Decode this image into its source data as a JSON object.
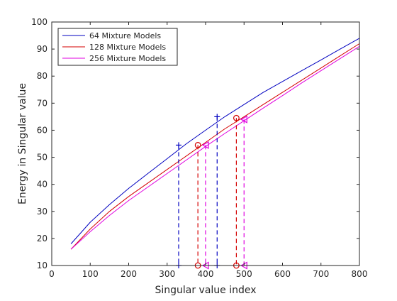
{
  "chart_data": {
    "type": "line",
    "title": "",
    "xlabel": "Singular value index",
    "ylabel": "Energy in Singular value",
    "xlim": [
      0,
      800
    ],
    "ylim": [
      10,
      100
    ],
    "xticks": [
      "0",
      "100",
      "200",
      "300",
      "400",
      "500",
      "600",
      "700",
      "800"
    ],
    "yticks": [
      "10",
      "20",
      "30",
      "40",
      "50",
      "60",
      "70",
      "80",
      "90",
      "100"
    ],
    "grid": false,
    "legend_position": "top-left",
    "series": [
      {
        "name": "64 Mixture Models",
        "color": "#0000c0",
        "x": [
          50,
          100,
          150,
          200,
          250,
          300,
          350,
          400,
          450,
          500,
          550,
          600,
          650,
          700,
          750,
          800
        ],
        "y": [
          18,
          26,
          32.5,
          38.5,
          44,
          49.5,
          55,
          60,
          65,
          69.5,
          74,
          78,
          82,
          86,
          90,
          94
        ]
      },
      {
        "name": "128 Mixture Models",
        "color": "#d40000",
        "x": [
          50,
          100,
          150,
          200,
          250,
          300,
          350,
          400,
          450,
          500,
          550,
          600,
          650,
          700,
          750,
          800
        ],
        "y": [
          16,
          23.5,
          30,
          35.5,
          40.5,
          45.5,
          50.5,
          55.5,
          60.5,
          65,
          69.5,
          74,
          78.5,
          83,
          87.5,
          92
        ]
      },
      {
        "name": "256 Mixture Models",
        "color": "#e000e0",
        "x": [
          50,
          100,
          150,
          200,
          250,
          300,
          350,
          400,
          450,
          500,
          550,
          600,
          650,
          700,
          750,
          800
        ],
        "y": [
          16,
          22.5,
          28.5,
          34,
          39,
          44,
          49,
          54,
          58.8,
          63.5,
          68.2,
          72.8,
          77.5,
          82,
          86.5,
          91
        ]
      }
    ],
    "markers": [
      {
        "series": "64 Mixture Models",
        "symbol": "+",
        "color": "#0000c0",
        "x": 330,
        "y": 54.5
      },
      {
        "series": "64 Mixture Models",
        "symbol": "+",
        "color": "#0000c0",
        "x": 430,
        "y": 65
      },
      {
        "series": "128 Mixture Models",
        "symbol": "o",
        "color": "#d40000",
        "x": 380,
        "y": 54.5
      },
      {
        "series": "128 Mixture Models",
        "symbol": "o",
        "color": "#d40000",
        "x": 480,
        "y": 64.5
      },
      {
        "series": "256 Mixture Models",
        "symbol": "<",
        "color": "#e000e0",
        "x": 400,
        "y": 54.5
      },
      {
        "series": "256 Mixture Models",
        "symbol": "<",
        "color": "#e000e0",
        "x": 500,
        "y": 64
      }
    ]
  }
}
